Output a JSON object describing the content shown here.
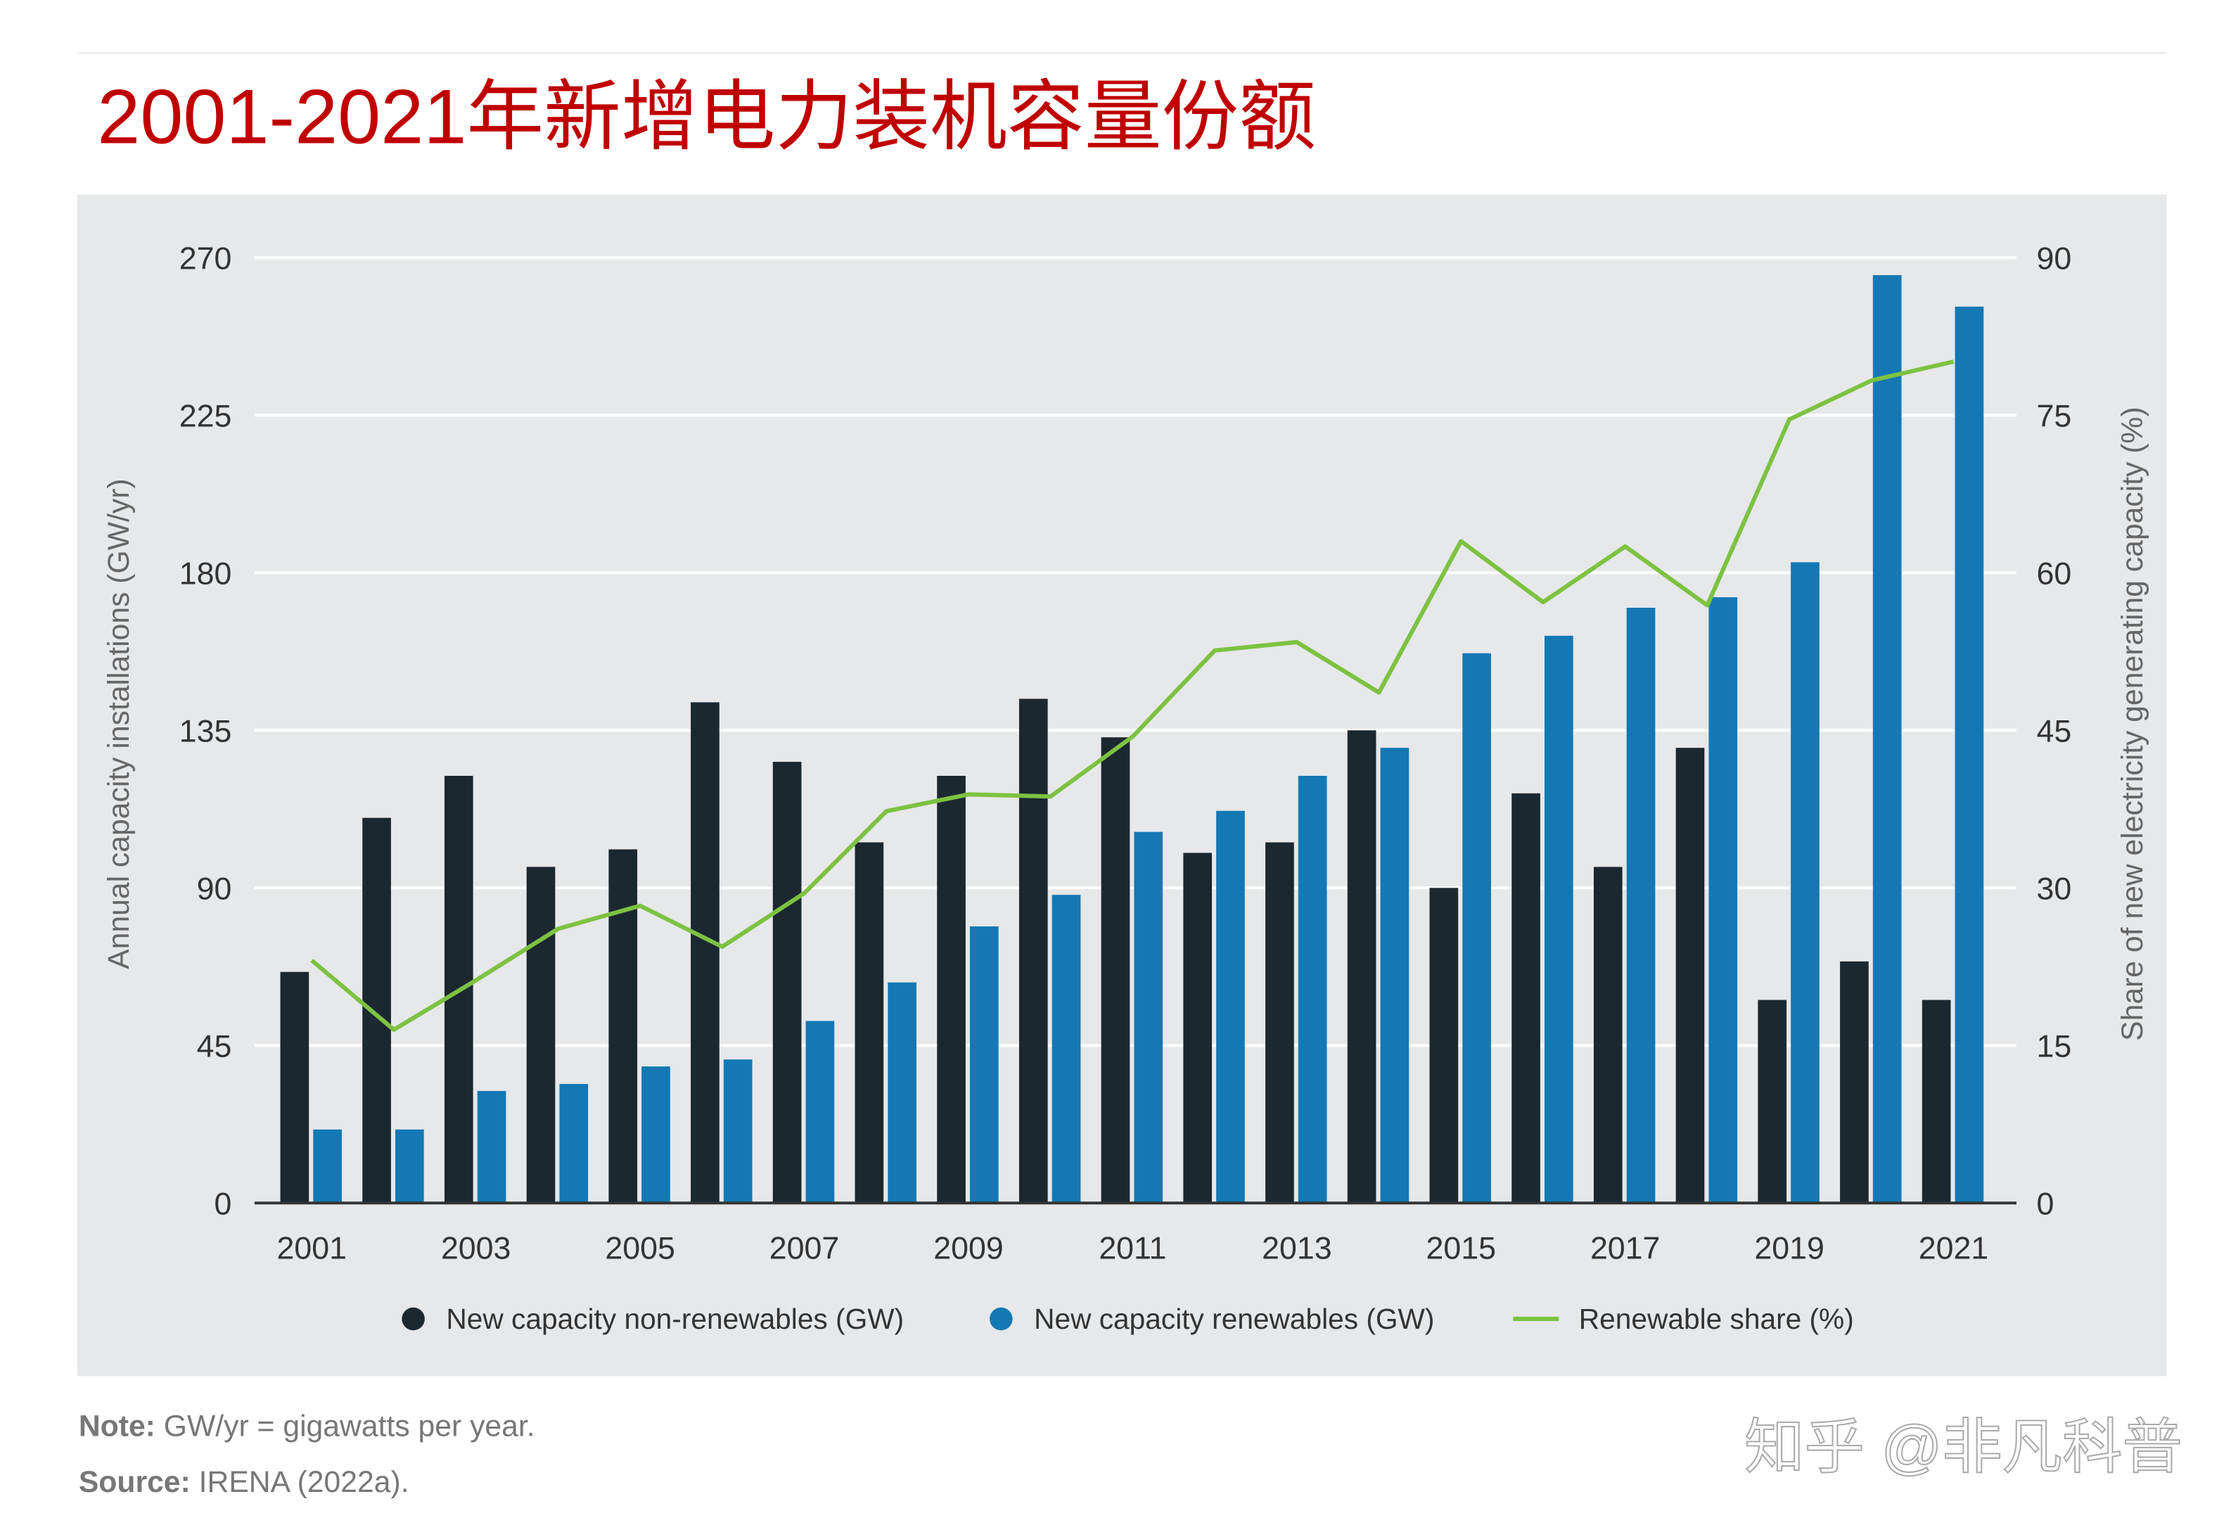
{
  "title": "2001-2021年新增电力装机容量份额",
  "note_label": "Note:",
  "note_text": " GW/yr = gigawatts per year.",
  "source_label": "Source:",
  "source_text": " IRENA (2022a).",
  "watermark": "知乎 @非凡科普",
  "chart_data": {
    "type": "bar",
    "title": "",
    "ylabel": "Annual capacity installations (GW/yr)",
    "y2label": "Share of new electricity generating capacity (%)",
    "ylim": [
      0,
      270
    ],
    "y2lim": [
      0,
      90
    ],
    "yticks": [
      0,
      45,
      90,
      135,
      180,
      225,
      270
    ],
    "y2ticks": [
      0,
      15,
      30,
      45,
      60,
      75,
      90
    ],
    "grid": true,
    "legend_position": "bottom",
    "categories": [
      "2001",
      "2002",
      "2003",
      "2004",
      "2005",
      "2006",
      "2007",
      "2008",
      "2009",
      "2010",
      "2011",
      "2012",
      "2013",
      "2014",
      "2015",
      "2016",
      "2017",
      "2018",
      "2019",
      "2020",
      "2021"
    ],
    "xtick_labels": [
      "2001",
      "2003",
      "2005",
      "2007",
      "2009",
      "2011",
      "2013",
      "2015",
      "2017",
      "2019",
      "2021"
    ],
    "series": [
      {
        "name": "New capacity non-renewables (GW)",
        "type": "bar",
        "axis": "left",
        "color": "#1c2830",
        "values": [
          66,
          110,
          122,
          96,
          101,
          143,
          126,
          103,
          122,
          144,
          133,
          100,
          103,
          135,
          90,
          117,
          96,
          130,
          58,
          69,
          58
        ]
      },
      {
        "name": "New capacity renewables (GW)",
        "type": "bar",
        "axis": "left",
        "color": "#1478b4",
        "values": [
          21,
          21,
          32,
          34,
          39,
          41,
          52,
          63,
          79,
          88,
          106,
          112,
          122,
          130,
          157,
          162,
          170,
          173,
          183,
          265,
          256
        ]
      },
      {
        "name": "Renewable share (%)",
        "type": "line",
        "axis": "right",
        "color": "#7dc242",
        "values": [
          23.1,
          16.5,
          21.2,
          26.1,
          28.3,
          24.4,
          29.5,
          37.3,
          38.9,
          38.7,
          44.4,
          52.6,
          53.4,
          48.6,
          63.0,
          57.2,
          62.5,
          56.9,
          74.6,
          78.3,
          80.1
        ]
      }
    ]
  }
}
